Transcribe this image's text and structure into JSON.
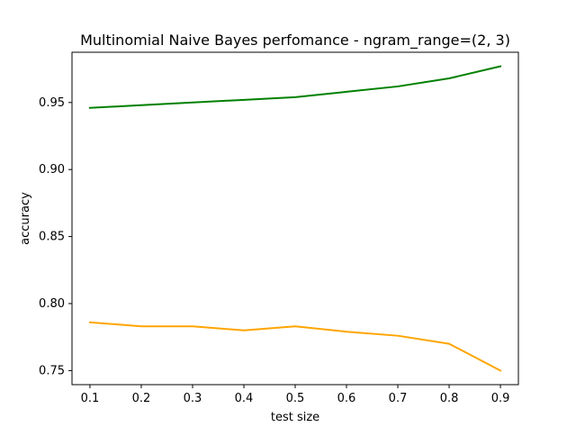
{
  "chart_data": {
    "type": "line",
    "title": "Multinomial Naive Bayes perfomance - ngram_range=(2, 3)",
    "xlabel": "test size",
    "ylabel": "accuracy",
    "x": [
      0.1,
      0.2,
      0.3,
      0.4,
      0.5,
      0.6,
      0.7,
      0.8,
      0.9
    ],
    "xlim": [
      0.065,
      0.935
    ],
    "ylim": [
      0.7395,
      0.9875
    ],
    "xticks": [
      "0.1",
      "0.2",
      "0.3",
      "0.4",
      "0.5",
      "0.6",
      "0.7",
      "0.8",
      "0.9"
    ],
    "yticks": [
      "0.75",
      "0.80",
      "0.85",
      "0.90",
      "0.95"
    ],
    "xtick_values": [
      0.1,
      0.2,
      0.3,
      0.4,
      0.5,
      0.6,
      0.7,
      0.8,
      0.9
    ],
    "ytick_values": [
      0.75,
      0.8,
      0.85,
      0.9,
      0.95
    ],
    "grid": false,
    "series": [
      {
        "color": "#008000",
        "values": [
          0.946,
          0.948,
          0.95,
          0.952,
          0.954,
          0.958,
          0.962,
          0.968,
          0.977
        ]
      },
      {
        "color": "#ffa500",
        "values": [
          0.786,
          0.783,
          0.783,
          0.78,
          0.783,
          0.779,
          0.776,
          0.77,
          0.75
        ]
      }
    ]
  }
}
